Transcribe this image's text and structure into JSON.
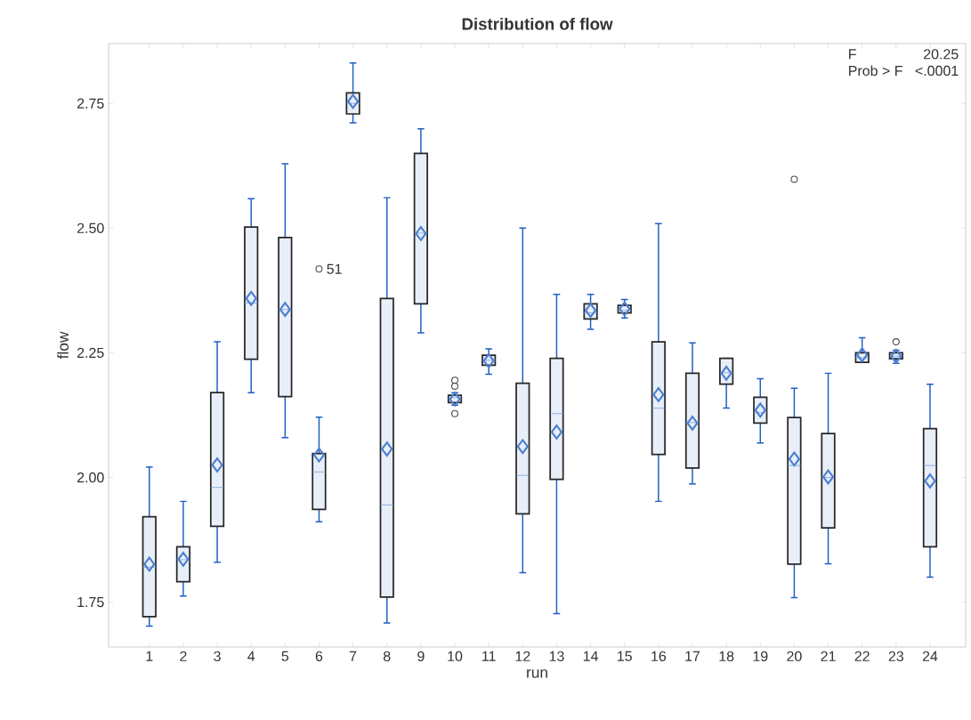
{
  "chart_data": {
    "type": "box",
    "title": "Distribution of flow",
    "xlabel": "run",
    "ylabel": "flow",
    "categories": [
      "1",
      "2",
      "3",
      "4",
      "5",
      "6",
      "7",
      "8",
      "9",
      "10",
      "11",
      "12",
      "13",
      "14",
      "15",
      "16",
      "17",
      "18",
      "19",
      "20",
      "21",
      "22",
      "23",
      "24"
    ],
    "series": [
      {
        "color": "#e8eff9",
        "boxes": [
          {
            "low": 1.702,
            "q1": 1.721,
            "median": 1.82,
            "q3": 1.921,
            "high": 2.021,
            "mean": 1.826
          },
          {
            "low": 1.762,
            "q1": 1.791,
            "median": 1.835,
            "q3": 1.861,
            "high": 1.952,
            "mean": 1.836
          },
          {
            "low": 1.83,
            "q1": 1.902,
            "median": 1.98,
            "q3": 2.17,
            "high": 2.272,
            "mean": 2.025
          },
          {
            "low": 2.17,
            "q1": 2.237,
            "median": 2.35,
            "q3": 2.502,
            "high": 2.559,
            "mean": 2.359
          },
          {
            "low": 2.08,
            "q1": 2.162,
            "median": 2.337,
            "q3": 2.481,
            "high": 2.629,
            "mean": 2.337
          },
          {
            "low": 1.911,
            "q1": 1.936,
            "median": 2.011,
            "q3": 2.048,
            "high": 2.121,
            "mean": 2.045,
            "outliers": [
              2.418
            ]
          },
          {
            "low": 2.711,
            "q1": 2.729,
            "median": 2.75,
            "q3": 2.771,
            "high": 2.831,
            "mean": 2.754
          },
          {
            "low": 1.708,
            "q1": 1.76,
            "median": 1.945,
            "q3": 2.359,
            "high": 2.561,
            "mean": 2.057
          },
          {
            "low": 2.29,
            "q1": 2.348,
            "median": 2.49,
            "q3": 2.65,
            "high": 2.699,
            "mean": 2.489
          },
          {
            "low": 2.145,
            "q1": 2.15,
            "median": 2.16,
            "q3": 2.165,
            "high": 2.17,
            "mean": 2.157,
            "outliers": [
              2.128,
              2.183,
              2.195
            ]
          },
          {
            "low": 2.207,
            "q1": 2.225,
            "median": 2.235,
            "q3": 2.245,
            "high": 2.258,
            "mean": 2.234
          },
          {
            "low": 1.809,
            "q1": 1.927,
            "median": 2.004,
            "q3": 2.189,
            "high": 2.5,
            "mean": 2.062
          },
          {
            "low": 1.727,
            "q1": 1.996,
            "median": 2.128,
            "q3": 2.239,
            "high": 2.367,
            "mean": 2.091
          },
          {
            "low": 2.297,
            "q1": 2.318,
            "median": 2.33,
            "q3": 2.348,
            "high": 2.367,
            "mean": 2.335
          },
          {
            "low": 2.32,
            "q1": 2.33,
            "median": 2.335,
            "q3": 2.345,
            "high": 2.357,
            "mean": 2.338
          },
          {
            "low": 1.952,
            "q1": 2.046,
            "median": 2.139,
            "q3": 2.272,
            "high": 2.509,
            "mean": 2.166
          },
          {
            "low": 1.987,
            "q1": 2.019,
            "median": 2.11,
            "q3": 2.209,
            "high": 2.27,
            "mean": 2.109
          },
          {
            "low": 2.139,
            "q1": 2.187,
            "median": 2.21,
            "q3": 2.239,
            "high": 2.239,
            "mean": 2.209
          },
          {
            "low": 2.069,
            "q1": 2.109,
            "median": 2.13,
            "q3": 2.161,
            "high": 2.198,
            "mean": 2.135
          },
          {
            "low": 1.759,
            "q1": 1.826,
            "median": 2.024,
            "q3": 2.12,
            "high": 2.179,
            "mean": 2.037,
            "outliers": [
              2.598
            ]
          },
          {
            "low": 1.827,
            "q1": 1.899,
            "median": 2.0,
            "q3": 2.088,
            "high": 2.209,
            "mean": 2.001
          },
          {
            "low": 2.231,
            "q1": 2.231,
            "median": 2.24,
            "q3": 2.25,
            "high": 2.28,
            "mean": 2.246
          },
          {
            "low": 2.229,
            "q1": 2.238,
            "median": 2.243,
            "q3": 2.25,
            "high": 2.255,
            "mean": 2.243,
            "outliers": [
              2.272
            ]
          },
          {
            "low": 1.8,
            "q1": 1.861,
            "median": 2.024,
            "q3": 2.098,
            "high": 2.187,
            "mean": 1.993
          }
        ]
      }
    ],
    "marker": "diamond",
    "ylim": [
      1.66,
      2.87
    ],
    "yticks": [
      1.75,
      {
        "value": 2,
        "label": "2.00"
      },
      2.25,
      {
        "value": 2.5,
        "label": "2.50"
      },
      2.75
    ],
    "annotations": [
      "F",
      "20.25",
      "Prob > F",
      "<.0001",
      "51"
    ]
  }
}
